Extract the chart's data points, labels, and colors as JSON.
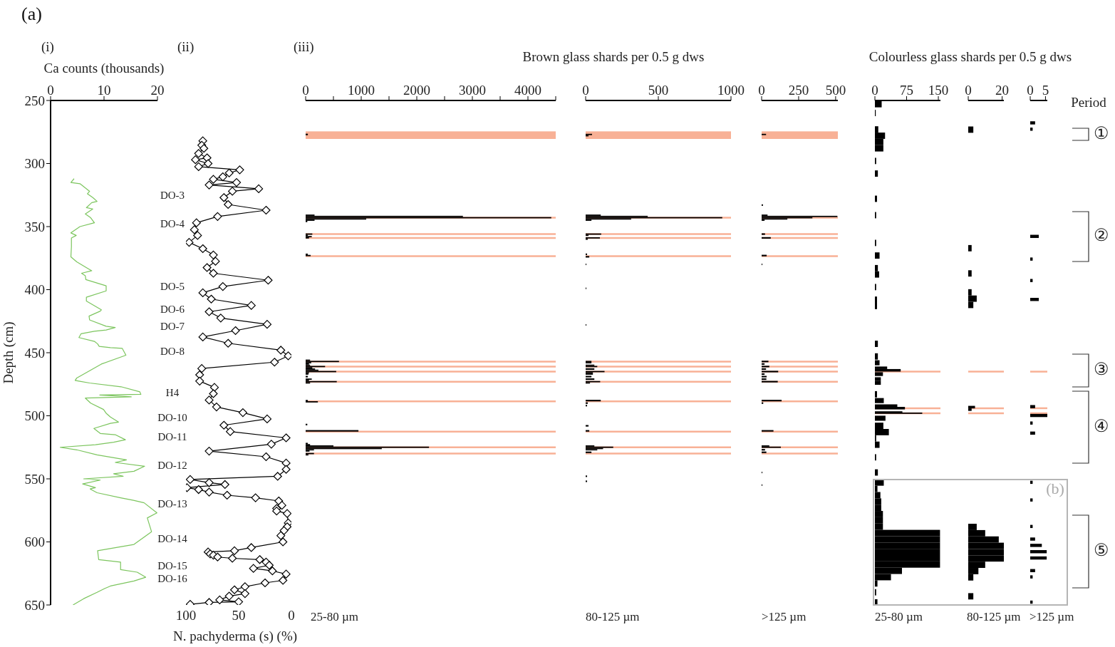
{
  "chart_data": [
    {
      "type": "line",
      "title": "(i)",
      "xlabel": "Ca counts (thousands)",
      "ylabel": "Depth (cm)",
      "annotations": [
        "(a)"
      ],
      "color": "#7cc55e",
      "xlim": [
        0,
        20
      ],
      "xticks": [
        0,
        10,
        20
      ],
      "ylim": [
        650,
        250
      ],
      "yticks": [
        250,
        300,
        350,
        400,
        450,
        500,
        550,
        600,
        650
      ],
      "x": [
        4.4,
        3.8,
        5.5,
        7.3,
        6.9,
        7.9,
        8.7,
        7.7,
        6.7,
        7.9,
        6.5,
        7.5,
        8.2,
        5.5,
        3.8,
        4.8,
        3.9,
        3.9,
        3.8,
        4.9,
        6.9,
        7.7,
        5.8,
        6.5,
        6.6,
        10.4,
        10.4,
        6.7,
        6.7,
        9.5,
        9.3,
        7.2,
        7.3,
        10.4,
        12.1,
        10.4,
        8.2,
        5.7,
        5.3,
        8.2,
        8.8,
        9.1,
        11.2,
        13.4,
        14.1,
        9.5,
        4.9,
        4.6,
        5.3,
        7.3,
        13.2,
        16.7,
        16.9,
        9.2,
        15.1,
        6.5,
        7.5,
        9.9,
        10.4,
        11.2,
        12.7,
        11.2,
        8.1,
        9.3,
        12.1,
        14,
        11.8,
        8.4,
        1.8,
        4.9,
        8.7,
        14.2,
        12.1,
        17.6,
        15.6,
        11.8,
        13.6,
        6.2,
        9.3,
        6,
        8.4,
        7.4,
        8.7,
        13.1,
        15.5,
        17.5,
        19.9,
        18.1,
        18.9,
        15.6,
        8.8,
        9,
        13.1,
        13.1,
        16.2,
        17.8,
        15.6,
        11.2,
        10.1,
        8.7,
        6.2,
        5,
        4.2
      ],
      "values": [
        312,
        315,
        316,
        322,
        324,
        327,
        330,
        331,
        335,
        336,
        340,
        343,
        347,
        350,
        355,
        357,
        359,
        366,
        374,
        378,
        383,
        385,
        387,
        389,
        392,
        397,
        401,
        406,
        409,
        416,
        417,
        421,
        424,
        429,
        430,
        432,
        433,
        435,
        438,
        441,
        443,
        445,
        446,
        446.5,
        452,
        459,
        470,
        472,
        472.5,
        474,
        477,
        481,
        483,
        483.5,
        485,
        486,
        490,
        495,
        498,
        501,
        505,
        506,
        510,
        514,
        515,
        519,
        521,
        523,
        525,
        527,
        531,
        535,
        537,
        540,
        544,
        546,
        548,
        550,
        551,
        554,
        557,
        558,
        561,
        565,
        567,
        569,
        577,
        581,
        592,
        602,
        607,
        614,
        616,
        622,
        624,
        628,
        631,
        635,
        637,
        640,
        645,
        648,
        650
      ]
    },
    {
      "type": "line",
      "title": "(ii)",
      "xlabel": "N. pachyderma (s) (%)",
      "color": "#000000",
      "marker": "diamond",
      "tick_labels": "x",
      "xlim": [
        100,
        0
      ],
      "xticks": [
        100,
        50,
        0
      ],
      "ylim": [
        650,
        250
      ],
      "yticks": [
        250,
        300,
        350,
        400,
        450,
        500,
        550,
        600,
        650
      ],
      "annotations": [
        "DO-3",
        "DO-4",
        "DO-5",
        "DO-6",
        "DO-7",
        "DO-8",
        "H4",
        "DO-10",
        "DO-11",
        "DO-12",
        "DO-13",
        "DO-14",
        "DO-15",
        "DO-16"
      ],
      "x": [
        84,
        85,
        83,
        88,
        80,
        91,
        79,
        88,
        49,
        59,
        65,
        74,
        52,
        78,
        31,
        56,
        64,
        60,
        24,
        70,
        90,
        92,
        89,
        97,
        84,
        74,
        72,
        80,
        74,
        22,
        65,
        84,
        76,
        38,
        78,
        67,
        23,
        53,
        84,
        60,
        10,
        3,
        16,
        85,
        87,
        87,
        73,
        74,
        78,
        71,
        46,
        23,
        64,
        58,
        5,
        19,
        78,
        24,
        5,
        5,
        13,
        96,
        78,
        63,
        99,
        88,
        78,
        61,
        34,
        12,
        9,
        14,
        14,
        4,
        3,
        4,
        7,
        10,
        8,
        38,
        54,
        79,
        77,
        74,
        70,
        56,
        30,
        24,
        21,
        36,
        18,
        5,
        8,
        25,
        44,
        54,
        44,
        59,
        68,
        50,
        78,
        96
      ],
      "values": [
        282,
        285.5,
        288,
        292,
        295.5,
        297,
        300,
        302.5,
        305,
        307.5,
        310.5,
        312.5,
        315,
        317,
        320,
        322,
        327,
        332.5,
        337,
        342,
        347,
        352.5,
        357,
        362.5,
        367.5,
        372.5,
        377.5,
        382.5,
        387,
        392.5,
        397.5,
        402.5,
        407.5,
        412.5,
        417.5,
        422.5,
        427.5,
        432.5,
        437.5,
        442.5,
        448,
        452.5,
        457.5,
        462.5,
        467.5,
        472.5,
        477.5,
        482.5,
        487.5,
        493,
        497.5,
        502.5,
        507.5,
        512.5,
        517.5,
        522.5,
        528,
        532.5,
        537.5,
        542.5,
        548,
        550.5,
        553,
        554.5,
        557,
        558.5,
        560.5,
        563,
        565,
        567.5,
        571,
        573.5,
        575.5,
        577.5,
        585,
        588,
        591,
        595,
        600,
        604.5,
        607,
        608,
        609.5,
        610.5,
        612,
        613,
        614,
        616,
        618.5,
        621,
        623,
        625.5,
        630.5,
        632.5,
        635.5,
        638,
        641,
        643,
        646,
        647.5,
        648,
        649.5
      ]
    },
    {
      "type": "bar",
      "orientation": "horizontal",
      "title": "(iii)",
      "xlabel": "25-80 µm",
      "color": "#000000",
      "tick_labels": "x",
      "xlim": [
        0,
        4500
      ],
      "xticks": [
        0,
        {
          "value": 500,
          "label": null
        },
        1000,
        {
          "value": 1500,
          "label": null
        },
        2000,
        {
          "value": 2500,
          "label": null
        },
        3000,
        {
          "value": 3500,
          "label": null
        },
        4000,
        {
          "value": 4500,
          "label": null
        }
      ],
      "ylim": [
        650,
        250
      ],
      "yticks": [
        250,
        300,
        350,
        400,
        450,
        500,
        550,
        600,
        650
      ],
      "ref_lines": [
        {
          "axis": "y",
          "value": 343,
          "color": "#f8b196"
        },
        {
          "axis": "y",
          "value": 356,
          "color": "#f8b196"
        },
        {
          "axis": "y",
          "value": 359,
          "color": "#f8b196"
        },
        {
          "axis": "y",
          "value": 373.5,
          "color": "#f8b196"
        },
        {
          "axis": "y",
          "value": 457,
          "color": "#f8b196"
        },
        {
          "axis": "y",
          "value": 461,
          "color": "#f8b196"
        },
        {
          "axis": "y",
          "value": 465,
          "color": "#f8b196"
        },
        {
          "axis": "y",
          "value": 473,
          "color": "#f8b196"
        },
        {
          "axis": "y",
          "value": 488.5,
          "color": "#f8b196"
        },
        {
          "axis": "y",
          "value": 512.5,
          "color": "#f8b196"
        },
        {
          "axis": "y",
          "value": 525,
          "color": "#f8b196"
        },
        {
          "axis": "y",
          "value": 530,
          "color": "#f8b196"
        }
      ],
      "bands": [
        {
          "axis": "y",
          "from": 274.5,
          "to": 280.5,
          "color": "#f8b196"
        }
      ],
      "x": [
        277,
        341,
        342,
        343,
        344,
        345,
        346,
        356,
        357,
        358,
        359,
        372,
        373,
        456,
        457,
        458,
        459,
        460,
        461,
        462,
        463,
        464,
        465,
        466,
        467,
        469,
        471,
        472,
        473,
        474,
        488,
        489,
        507,
        512,
        522,
        523,
        524,
        525,
        526,
        527,
        528,
        530,
        531
      ],
      "values": [
        40,
        160,
        2830,
        4420,
        1090,
        160,
        30,
        120,
        40,
        110,
        60,
        40,
        90,
        80,
        600,
        100,
        60,
        80,
        350,
        120,
        170,
        230,
        550,
        60,
        50,
        40,
        110,
        60,
        560,
        80,
        40,
        220,
        30,
        950,
        40,
        80,
        500,
        2220,
        1370,
        150,
        70,
        150,
        50
      ]
    },
    {
      "type": "bar",
      "orientation": "horizontal",
      "title": "Brown glass shards per 0.5 g dws",
      "xlabel": "80-125 µm",
      "color": "#000000",
      "tick_labels": "x",
      "xlim": [
        0,
        1000
      ],
      "xticks": [
        0,
        500,
        1000
      ],
      "ylim": [
        650,
        250
      ],
      "yticks": [
        250,
        300,
        350,
        400,
        450,
        500,
        550,
        600,
        650
      ],
      "ref_lines": [
        {
          "axis": "y",
          "value": 343,
          "color": "#f8b196"
        },
        {
          "axis": "y",
          "value": 356,
          "color": "#f8b196"
        },
        {
          "axis": "y",
          "value": 359,
          "color": "#f8b196"
        },
        {
          "axis": "y",
          "value": 373.5,
          "color": "#f8b196"
        },
        {
          "axis": "y",
          "value": 457,
          "color": "#f8b196"
        },
        {
          "axis": "y",
          "value": 461,
          "color": "#f8b196"
        },
        {
          "axis": "y",
          "value": 465,
          "color": "#f8b196"
        },
        {
          "axis": "y",
          "value": 473,
          "color": "#f8b196"
        },
        {
          "axis": "y",
          "value": 488.5,
          "color": "#f8b196"
        },
        {
          "axis": "y",
          "value": 512.5,
          "color": "#f8b196"
        },
        {
          "axis": "y",
          "value": 525,
          "color": "#f8b196"
        },
        {
          "axis": "y",
          "value": 530,
          "color": "#f8b196"
        }
      ],
      "bands": [
        {
          "axis": "y",
          "from": 274.5,
          "to": 280.5,
          "color": "#f8b196"
        }
      ],
      "x": [
        277,
        278,
        341,
        342,
        343,
        344,
        345,
        356,
        357,
        359,
        360,
        372,
        374,
        380,
        399,
        428,
        457,
        458,
        460,
        461,
        463,
        465,
        466,
        467,
        469,
        471,
        473,
        474,
        488,
        490,
        492,
        508,
        512,
        524,
        525,
        526,
        527,
        529,
        548,
        552
      ],
      "values": [
        44,
        20,
        104,
        427,
        940,
        313,
        40,
        107,
        20,
        98,
        15,
        10,
        25,
        5,
        5,
        5,
        40,
        40,
        60,
        80,
        60,
        130,
        50,
        50,
        40,
        60,
        100,
        30,
        104,
        15,
        10,
        20,
        25,
        60,
        190,
        120,
        80,
        40,
        10,
        10
      ]
    },
    {
      "type": "bar",
      "orientation": "horizontal",
      "xlabel": ">125 µm",
      "color": "#000000",
      "tick_labels": "x",
      "xlim": [
        0,
        515
      ],
      "xticks": [
        0,
        250,
        500
      ],
      "ylim": [
        650,
        250
      ],
      "yticks": [
        250,
        300,
        350,
        400,
        450,
        500,
        550,
        600,
        650
      ],
      "ref_lines": [
        {
          "axis": "y",
          "value": 343,
          "color": "#f8b196"
        },
        {
          "axis": "y",
          "value": 356,
          "color": "#f8b196"
        },
        {
          "axis": "y",
          "value": 359,
          "color": "#f8b196"
        },
        {
          "axis": "y",
          "value": 373.5,
          "color": "#f8b196"
        },
        {
          "axis": "y",
          "value": 457,
          "color": "#f8b196"
        },
        {
          "axis": "y",
          "value": 461,
          "color": "#f8b196"
        },
        {
          "axis": "y",
          "value": 465,
          "color": "#f8b196"
        },
        {
          "axis": "y",
          "value": 473,
          "color": "#f8b196"
        },
        {
          "axis": "y",
          "value": 488.5,
          "color": "#f8b196"
        },
        {
          "axis": "y",
          "value": 512.5,
          "color": "#f8b196"
        },
        {
          "axis": "y",
          "value": 525,
          "color": "#f8b196"
        },
        {
          "axis": "y",
          "value": 530,
          "color": "#f8b196"
        }
      ],
      "bands": [
        {
          "axis": "y",
          "from": 274.5,
          "to": 280.5,
          "color": "#f8b196"
        }
      ],
      "x": [
        277,
        278,
        333,
        341,
        342,
        343,
        344,
        345,
        356,
        359,
        373,
        380,
        457,
        459,
        461,
        463,
        465,
        467,
        469,
        471,
        473,
        488,
        490,
        512,
        524,
        525,
        527,
        529,
        545,
        555
      ],
      "values": [
        30,
        null,
        9,
        40,
        512,
        343,
        174,
        20,
        23,
        62,
        34,
        5,
        46,
        20,
        52,
        30,
        112,
        20,
        34,
        32,
        109,
        135,
        11,
        80,
        52,
        130,
        23,
        32,
        5,
        5
      ]
    },
    {
      "type": "bar",
      "orientation": "horizontal",
      "xlabel": "25-80 µm",
      "color": "#000000",
      "tick_labels": "x",
      "xlim": [
        0,
        155
      ],
      "xticks": [
        0,
        75,
        150
      ],
      "ylim": [
        650,
        250
      ],
      "yticks": [
        250,
        300,
        350,
        400,
        450,
        500,
        550,
        600,
        650
      ],
      "ref_lines": [
        {
          "axis": "y",
          "value": 465,
          "color": "#f8b196"
        },
        {
          "axis": "y",
          "value": 494,
          "color": "#f8b196"
        },
        {
          "axis": "y",
          "value": 498,
          "color": "#f8b196"
        }
      ],
      "x": [
        253,
        260,
        273,
        278,
        283,
        288,
        298,
        308,
        328,
        341,
        363,
        373,
        383,
        388,
        398,
        408,
        413,
        443,
        453,
        458,
        462,
        464,
        467,
        471,
        474,
        483,
        488,
        492,
        494,
        497,
        498,
        502,
        508,
        513,
        518,
        523,
        533,
        545,
        553,
        558,
        563,
        568,
        573,
        578,
        583,
        588,
        593,
        598,
        603,
        608,
        613,
        618,
        623,
        628,
        633,
        640,
        648
      ],
      "values": [
        16,
        2,
        8,
        24,
        20,
        20,
        3,
        7,
        5,
        3,
        3,
        11,
        7,
        10,
        3,
        5,
        5,
        7,
        7,
        11,
        29,
        61,
        19,
        14,
        14,
        5,
        21,
        53,
        71,
        65,
        112,
        25,
        20,
        33,
        3,
        11,
        3,
        7,
        21,
        6,
        13,
        15,
        15,
        19,
        19,
        19,
        154,
        154,
        154,
        154,
        154,
        154,
        64,
        38,
        6,
        3,
        6
      ]
    },
    {
      "type": "bar",
      "orientation": "horizontal",
      "title": "Colourless glass shards per 0.5 g dws",
      "xlabel": "80-125 µm",
      "color": "#000000",
      "tick_labels": "x",
      "xlim": [
        0,
        21
      ],
      "xticks": [
        0,
        20
      ],
      "ylim": [
        650,
        250
      ],
      "yticks": [
        250,
        300,
        350,
        400,
        450,
        500,
        550,
        600,
        650
      ],
      "ref_lines": [
        {
          "axis": "y",
          "value": 465,
          "color": "#f8b196"
        },
        {
          "axis": "y",
          "value": 494,
          "color": "#f8b196"
        },
        {
          "axis": "y",
          "value": 498,
          "color": "#f8b196"
        }
      ],
      "x": [
        273,
        367,
        387,
        402,
        407,
        412,
        493,
        495,
        588,
        593,
        598,
        603,
        608,
        613,
        618,
        623,
        628,
        643
      ],
      "values": [
        3,
        2,
        2,
        2,
        5,
        3,
        4,
        2,
        5,
        10,
        18,
        21,
        21,
        21,
        10,
        6,
        3,
        3
      ]
    },
    {
      "type": "bar",
      "orientation": "horizontal",
      "xlabel": ">125 µm",
      "color": "#000000",
      "tick_labels": "x",
      "xlim": [
        0,
        5.6
      ],
      "xticks": [
        0,
        5
      ],
      "ylim": [
        650,
        250
      ],
      "yticks": [
        250,
        300,
        350,
        400,
        450,
        500,
        550,
        600,
        650
      ],
      "annotations": [
        "Period",
        "①",
        "②",
        "③",
        "④",
        "⑤",
        "(b)"
      ],
      "ref_lines": [
        {
          "axis": "y",
          "value": 465,
          "color": "#f8b196"
        },
        {
          "axis": "y",
          "value": 494,
          "color": "#f8b196"
        },
        {
          "axis": "y",
          "value": 498,
          "color": "#f8b196"
        }
      ],
      "x": [
        268,
        273,
        358,
        376,
        393,
        408,
        493,
        500,
        506,
        514,
        553,
        567,
        588,
        598,
        603,
        608,
        613,
        623,
        628,
        648
      ],
      "values": [
        1.6,
        0.8,
        2.8,
        0.8,
        0.8,
        2.8,
        1.6,
        5.6,
        0.8,
        1.6,
        0.8,
        0.8,
        0.8,
        1.6,
        3.8,
        5.4,
        5.4,
        1.6,
        0.8,
        0.8
      ]
    }
  ]
}
